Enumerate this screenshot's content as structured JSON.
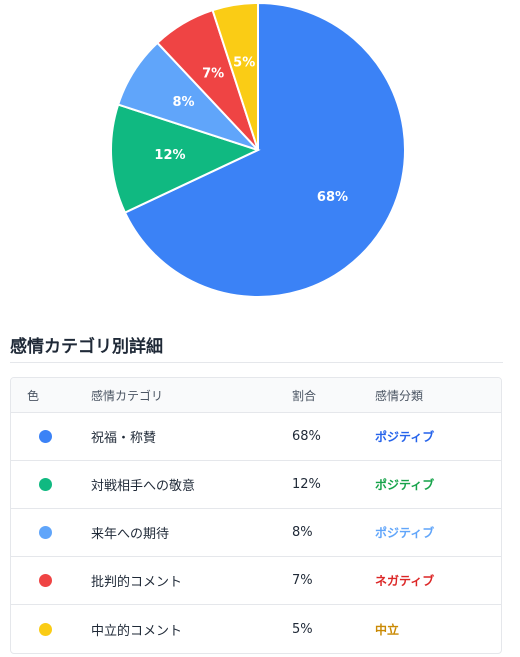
{
  "chart_data": {
    "type": "pie",
    "title": "",
    "slices": [
      {
        "label": "祝福・称賛",
        "value": 68,
        "display": "68%",
        "color": "#3b82f6"
      },
      {
        "label": "対戦相手への敬意",
        "value": 12,
        "display": "12%",
        "color": "#10b981"
      },
      {
        "label": "来年への期待",
        "value": 8,
        "display": "8%",
        "color": "#60a5fa"
      },
      {
        "label": "批判的コメント",
        "value": 7,
        "display": "7%",
        "color": "#ef4444"
      },
      {
        "label": "中立的コメント",
        "value": 5,
        "display": "5%",
        "color": "#facc15"
      }
    ]
  },
  "details": {
    "title": "感情カテゴリ別詳細",
    "headers": {
      "color": "色",
      "category": "感情カテゴリ",
      "ratio": "割合",
      "type": "感情分類"
    },
    "rows": [
      {
        "dot_color": "#3b82f6",
        "category": "祝福・称賛",
        "ratio": "68%",
        "type": "ポジティブ",
        "type_color": "#2563eb"
      },
      {
        "dot_color": "#10b981",
        "category": "対戦相手への敬意",
        "ratio": "12%",
        "type": "ポジティブ",
        "type_color": "#16a34a"
      },
      {
        "dot_color": "#60a5fa",
        "category": "来年への期待",
        "ratio": "8%",
        "type": "ポジティブ",
        "type_color": "#60a5fa"
      },
      {
        "dot_color": "#ef4444",
        "category": "批判的コメント",
        "ratio": "7%",
        "type": "ネガティブ",
        "type_color": "#dc2626"
      },
      {
        "dot_color": "#facc15",
        "category": "中立的コメント",
        "ratio": "5%",
        "type": "中立",
        "type_color": "#ca8a04"
      }
    ]
  }
}
